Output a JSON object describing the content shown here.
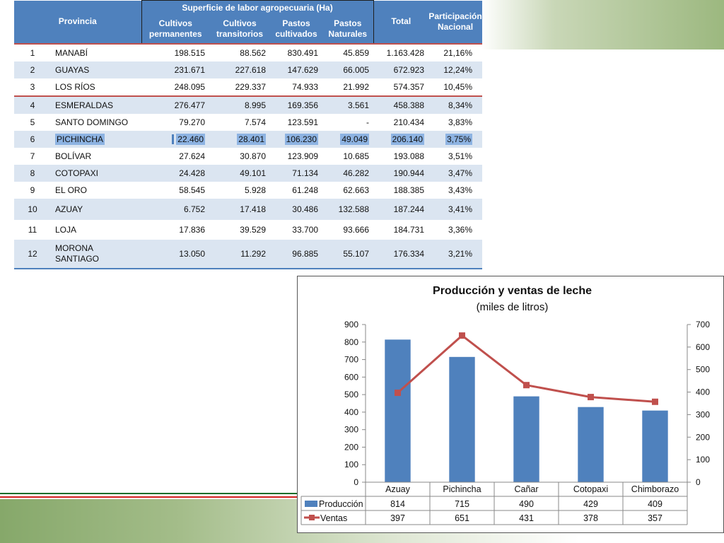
{
  "table": {
    "headers": {
      "province": "Provincia",
      "group": "Superficie de labor agropecuaria (Ha)",
      "cols": [
        "Cultivos permanentes",
        "Cultivos transitorios",
        "Pastos cultivados",
        "Pastos Naturales"
      ],
      "total": "Total",
      "participation": "Participación Nacional"
    },
    "rows": [
      {
        "n": "1",
        "name": "MANABÍ",
        "perm": "198.515",
        "trans": "88.562",
        "cult": "830.491",
        "nat": "45.859",
        "total": "1.163.428",
        "pct": "21,16%"
      },
      {
        "n": "2",
        "name": "GUAYAS",
        "perm": "231.671",
        "trans": "227.618",
        "cult": "147.629",
        "nat": "66.005",
        "total": "672.923",
        "pct": "12,24%"
      },
      {
        "n": "3",
        "name": "LOS RÍOS",
        "perm": "248.095",
        "trans": "229.337",
        "cult": "74.933",
        "nat": "21.992",
        "total": "574.357",
        "pct": "10,45%"
      },
      {
        "n": "4",
        "name": "ESMERALDAS",
        "perm": "276.477",
        "trans": "8.995",
        "cult": "169.356",
        "nat": "3.561",
        "total": "458.388",
        "pct": "8,34%"
      },
      {
        "n": "5",
        "name": "SANTO DOMINGO",
        "perm": "79.270",
        "trans": "7.574",
        "cult": "123.591",
        "nat": "-",
        "total": "210.434",
        "pct": "3,83%"
      },
      {
        "n": "6",
        "name": "PICHINCHA",
        "perm": "22.460",
        "trans": "28.401",
        "cult": "106.230",
        "nat": "49.049",
        "total": "206.140",
        "pct": "3,75%"
      },
      {
        "n": "7",
        "name": "BOLÍVAR",
        "perm": "27.624",
        "trans": "30.870",
        "cult": "123.909",
        "nat": "10.685",
        "total": "193.088",
        "pct": "3,51%"
      },
      {
        "n": "8",
        "name": "COTOPAXI",
        "perm": "24.428",
        "trans": "49.101",
        "cult": "71.134",
        "nat": "46.282",
        "total": "190.944",
        "pct": "3,47%"
      },
      {
        "n": "9",
        "name": "EL ORO",
        "perm": "58.545",
        "trans": "5.928",
        "cult": "61.248",
        "nat": "62.663",
        "total": "188.385",
        "pct": "3,43%"
      },
      {
        "n": "10",
        "name": "AZUAY",
        "perm": "6.752",
        "trans": "17.418",
        "cult": "30.486",
        "nat": "132.588",
        "total": "187.244",
        "pct": "3,41%"
      },
      {
        "n": "11",
        "name": "LOJA",
        "perm": "17.836",
        "trans": "39.529",
        "cult": "33.700",
        "nat": "93.666",
        "total": "184.731",
        "pct": "3,36%"
      },
      {
        "n": "12",
        "name": "MORONA SANTIAGO",
        "perm": "13.050",
        "trans": "11.292",
        "cult": "96.885",
        "nat": "55.107",
        "total": "176.334",
        "pct": "3,21%"
      }
    ]
  },
  "chart_data": {
    "type": "bar",
    "title": "Producción y ventas de leche",
    "subtitle": "(miles de litros)",
    "categories": [
      "Azuay",
      "Pichincha",
      "Cañar",
      "Cotopaxi",
      "Chimborazo"
    ],
    "series": [
      {
        "name": "Producción",
        "kind": "bar",
        "axis": "left",
        "values": [
          814,
          715,
          490,
          429,
          409
        ],
        "color": "#4f81bd"
      },
      {
        "name": "Ventas",
        "kind": "line",
        "axis": "right",
        "values": [
          397,
          651,
          431,
          378,
          357
        ],
        "color": "#c0504d"
      }
    ],
    "ylim_left": [
      0,
      900
    ],
    "yticks_left": [
      0,
      100,
      200,
      300,
      400,
      500,
      600,
      700,
      800,
      900
    ],
    "ylim_right": [
      0,
      700
    ],
    "yticks_right": [
      0,
      100,
      200,
      300,
      400,
      500,
      600,
      700
    ],
    "grid": false,
    "legend": "data-table"
  },
  "colors": {
    "header_blue": "#4f81bd",
    "row_band": "#dbe5f1",
    "separator_red": "#c0504d",
    "highlight": "#8db3e2"
  }
}
